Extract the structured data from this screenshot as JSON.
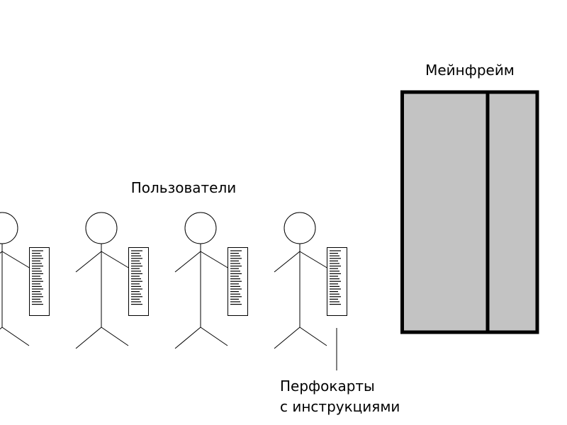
{
  "labels": {
    "mainframe": "Мейнфрейм",
    "users": "Пользователи",
    "punch_cards_line1": "Перфокарты",
    "punch_cards_line2": "с инструкциями"
  },
  "colors": {
    "mainframe_fill": "#c3c3c3",
    "stroke": "#000000",
    "background": "#ffffff"
  },
  "users": {
    "count": 4
  }
}
